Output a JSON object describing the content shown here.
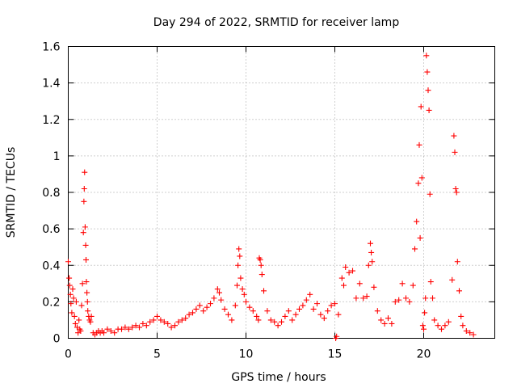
{
  "chart_data": {
    "type": "scatter",
    "title": "Day 294 of 2022, SRMTID for receiver lamp",
    "xlabel": "GPS time / hours",
    "ylabel": "SRMTID / TECUs",
    "xlim": [
      0,
      24
    ],
    "ylim": [
      0,
      1.6
    ],
    "xticks": [
      0,
      5,
      10,
      15,
      20
    ],
    "xtick_labels": [
      "0",
      "5",
      "10",
      "15",
      "20"
    ],
    "yticks": [
      0,
      0.2,
      0.4,
      0.6,
      0.8,
      1,
      1.2,
      1.4,
      1.6
    ],
    "ytick_labels": [
      "0",
      "0.2",
      "0.4",
      "0.6",
      "0.8",
      "1",
      "1.2",
      "1.4",
      "1.6"
    ],
    "grid": true,
    "marker": "plus",
    "series": [
      {
        "name": "SRMTID",
        "color": "#ff0000",
        "x": [
          0.0,
          0.05,
          0.08,
          0.12,
          0.15,
          0.2,
          0.25,
          0.3,
          0.35,
          0.4,
          0.45,
          0.5,
          0.55,
          0.6,
          0.65,
          0.7,
          0.75,
          0.8,
          0.85,
          0.88,
          0.9,
          0.92,
          0.95,
          0.98,
          1.0,
          1.02,
          1.05,
          1.08,
          1.1,
          1.15,
          1.2,
          1.25,
          1.3,
          1.4,
          1.5,
          1.6,
          1.7,
          1.8,
          1.9,
          2.0,
          2.2,
          2.4,
          2.6,
          2.8,
          3.0,
          3.2,
          3.4,
          3.6,
          3.8,
          4.0,
          4.2,
          4.4,
          4.6,
          4.8,
          5.0,
          5.2,
          5.4,
          5.6,
          5.8,
          6.0,
          6.2,
          6.4,
          6.6,
          6.8,
          7.0,
          7.2,
          7.4,
          7.6,
          7.8,
          8.0,
          8.2,
          8.4,
          8.5,
          8.6,
          8.8,
          9.0,
          9.2,
          9.4,
          9.5,
          9.55,
          9.6,
          9.65,
          9.7,
          9.8,
          9.9,
          10.0,
          10.2,
          10.4,
          10.6,
          10.7,
          10.75,
          10.8,
          10.85,
          10.9,
          11.0,
          11.2,
          11.4,
          11.6,
          11.8,
          12.0,
          12.2,
          12.4,
          12.6,
          12.8,
          13.0,
          13.2,
          13.4,
          13.6,
          13.8,
          14.0,
          14.2,
          14.4,
          14.6,
          14.8,
          15.0,
          15.05,
          15.1,
          15.2,
          15.4,
          15.5,
          15.6,
          15.8,
          16.0,
          16.2,
          16.4,
          16.6,
          16.8,
          16.9,
          17.0,
          17.05,
          17.1,
          17.2,
          17.4,
          17.6,
          17.8,
          18.0,
          18.2,
          18.4,
          18.6,
          18.8,
          19.0,
          19.2,
          19.4,
          19.5,
          19.6,
          19.7,
          19.75,
          19.8,
          19.85,
          19.9,
          19.95,
          20.0,
          20.05,
          20.1,
          20.15,
          20.2,
          20.25,
          20.3,
          20.35,
          20.4,
          20.5,
          20.6,
          20.8,
          21.0,
          21.2,
          21.4,
          21.6,
          21.7,
          21.75,
          21.8,
          21.85,
          21.9,
          22.0,
          22.1,
          22.2,
          22.4,
          22.6,
          22.8
        ],
        "y": [
          0.42,
          0.33,
          0.29,
          0.24,
          0.19,
          0.14,
          0.27,
          0.22,
          0.12,
          0.08,
          0.2,
          0.06,
          0.03,
          0.1,
          0.05,
          0.04,
          0.18,
          0.3,
          0.58,
          0.75,
          0.82,
          0.91,
          0.61,
          0.51,
          0.43,
          0.31,
          0.25,
          0.2,
          0.15,
          0.12,
          0.1,
          0.09,
          0.12,
          0.03,
          0.02,
          0.03,
          0.04,
          0.03,
          0.04,
          0.03,
          0.05,
          0.04,
          0.03,
          0.05,
          0.05,
          0.06,
          0.05,
          0.06,
          0.07,
          0.06,
          0.08,
          0.07,
          0.09,
          0.1,
          0.12,
          0.1,
          0.09,
          0.08,
          0.06,
          0.07,
          0.09,
          0.1,
          0.11,
          0.13,
          0.14,
          0.16,
          0.18,
          0.15,
          0.17,
          0.19,
          0.22,
          0.27,
          0.25,
          0.21,
          0.16,
          0.13,
          0.1,
          0.18,
          0.29,
          0.4,
          0.49,
          0.45,
          0.33,
          0.27,
          0.24,
          0.2,
          0.17,
          0.15,
          0.12,
          0.1,
          0.44,
          0.43,
          0.4,
          0.35,
          0.26,
          0.15,
          0.1,
          0.09,
          0.07,
          0.09,
          0.12,
          0.15,
          0.1,
          0.13,
          0.16,
          0.18,
          0.21,
          0.24,
          0.16,
          0.19,
          0.13,
          0.11,
          0.15,
          0.18,
          0.19,
          0.0,
          0.01,
          0.13,
          0.33,
          0.29,
          0.39,
          0.36,
          0.37,
          0.22,
          0.3,
          0.22,
          0.23,
          0.4,
          0.52,
          0.47,
          0.42,
          0.28,
          0.15,
          0.1,
          0.08,
          0.11,
          0.08,
          0.2,
          0.21,
          0.3,
          0.22,
          0.2,
          0.29,
          0.49,
          0.64,
          0.85,
          1.06,
          0.55,
          1.27,
          0.88,
          0.07,
          0.05,
          0.14,
          0.22,
          1.55,
          1.46,
          1.36,
          1.25,
          0.79,
          0.31,
          0.22,
          0.1,
          0.07,
          0.05,
          0.07,
          0.09,
          0.32,
          1.11,
          1.02,
          0.82,
          0.8,
          0.42,
          0.26,
          0.12,
          0.07,
          0.04,
          0.03,
          0.02
        ]
      }
    ]
  }
}
